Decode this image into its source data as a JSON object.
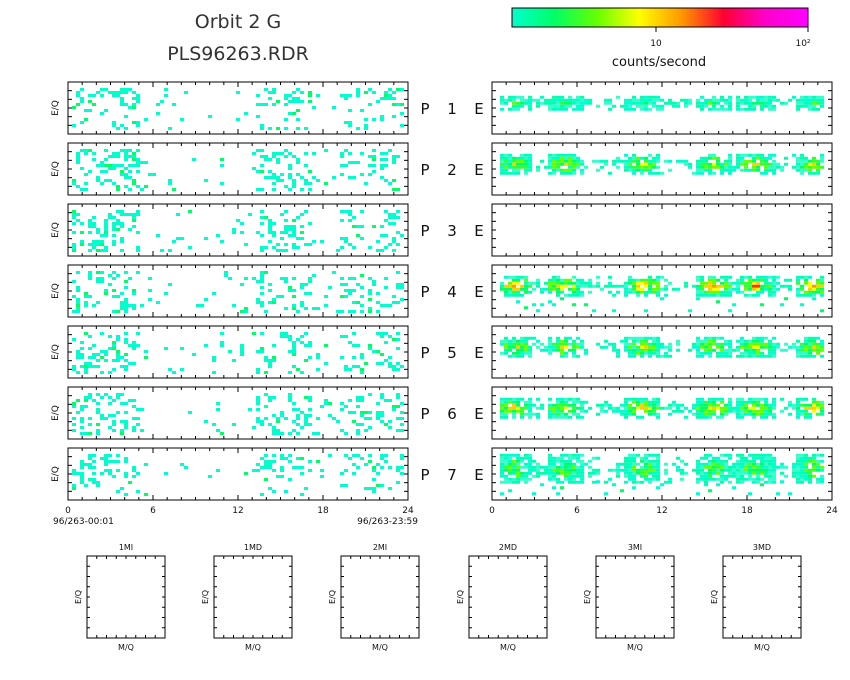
{
  "header": {
    "title_line1": "Orbit 2 G",
    "title_line2": "PLS96263.RDR"
  },
  "colorbar": {
    "unit_label": "counts/second",
    "tick_labels": [
      "10",
      "10²"
    ],
    "stops": [
      "#00ffcc",
      "#00ff66",
      "#66ff00",
      "#ffff00",
      "#ff9900",
      "#ff0033",
      "#ff00cc",
      "#ff00ff"
    ]
  },
  "time_axis": {
    "ticks": [
      "0",
      "6",
      "12",
      "18",
      "24"
    ],
    "start_label": "96/263-00:01",
    "end_label": "96/263-23:59"
  },
  "rows": [
    {
      "detector": "P",
      "number": "1",
      "mode": "E",
      "ylabel": "E/Q"
    },
    {
      "detector": "P",
      "number": "2",
      "mode": "E",
      "ylabel": "E/Q"
    },
    {
      "detector": "P",
      "number": "3",
      "mode": "E",
      "ylabel": "E/Q"
    },
    {
      "detector": "P",
      "number": "4",
      "mode": "E",
      "ylabel": "E/Q"
    },
    {
      "detector": "P",
      "number": "5",
      "mode": "E",
      "ylabel": "E/Q"
    },
    {
      "detector": "P",
      "number": "6",
      "mode": "E",
      "ylabel": "E/Q"
    },
    {
      "detector": "P",
      "number": "7",
      "mode": "E",
      "ylabel": "E/Q"
    }
  ],
  "small_panels": [
    {
      "title": "1MI",
      "xlabel": "M/Q",
      "ylabel": "E/Q"
    },
    {
      "title": "1MD",
      "xlabel": "M/Q",
      "ylabel": "E/Q"
    },
    {
      "title": "2MI",
      "xlabel": "M/Q",
      "ylabel": "E/Q"
    },
    {
      "title": "2MD",
      "xlabel": "M/Q",
      "ylabel": "E/Q"
    },
    {
      "title": "3MI",
      "xlabel": "M/Q",
      "ylabel": "E/Q"
    },
    {
      "title": "3MD",
      "xlabel": "M/Q",
      "ylabel": "E/Q"
    }
  ],
  "chart_data": {
    "type": "heatmap",
    "x_range_hours": [
      0,
      24
    ],
    "color_scale": "log",
    "left_panels": {
      "description_level": "sparse low counts",
      "p3_empty": false
    },
    "right_panels": {
      "bursts_centered_hours": [
        1.5,
        5.0,
        10.5,
        15.5,
        18.5,
        22.5
      ],
      "peak_level_by_row": [
        1,
        2,
        0,
        3,
        2,
        2.5,
        1.5
      ]
    }
  }
}
